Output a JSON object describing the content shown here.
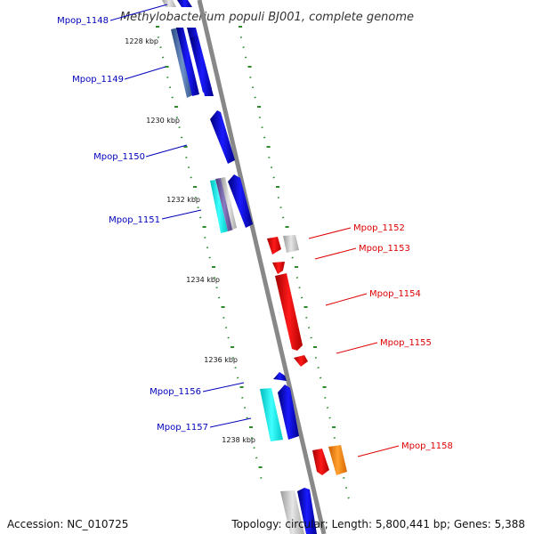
{
  "title": "Methylobacterium populi BJ001, complete genome",
  "colors": {
    "backbone": "#888888",
    "dots": "#2e8b2e",
    "minus_label": "#0000bb",
    "plus_label": "#dd0000"
  },
  "ticks": [
    "1228 kbp",
    "1230 kbp",
    "1232 kbp",
    "1234 kbp",
    "1236 kbp",
    "1238 kbp"
  ],
  "genes": [
    {
      "id": "Mpop_1148",
      "strand": "minus"
    },
    {
      "id": "Mpop_1149",
      "strand": "minus"
    },
    {
      "id": "Mpop_1150",
      "strand": "minus"
    },
    {
      "id": "Mpop_1151",
      "strand": "minus"
    },
    {
      "id": "Mpop_1152",
      "strand": "plus"
    },
    {
      "id": "Mpop_1153",
      "strand": "plus"
    },
    {
      "id": "Mpop_1154",
      "strand": "plus"
    },
    {
      "id": "Mpop_1155",
      "strand": "plus"
    },
    {
      "id": "Mpop_1156",
      "strand": "minus"
    },
    {
      "id": "Mpop_1157",
      "strand": "minus"
    },
    {
      "id": "Mpop_1158",
      "strand": "plus"
    }
  ],
  "footer": {
    "accession": "Accession: NC_010725",
    "summary": "Topology: circular; Length: 5,800,441 bp; Genes: 5,388"
  }
}
